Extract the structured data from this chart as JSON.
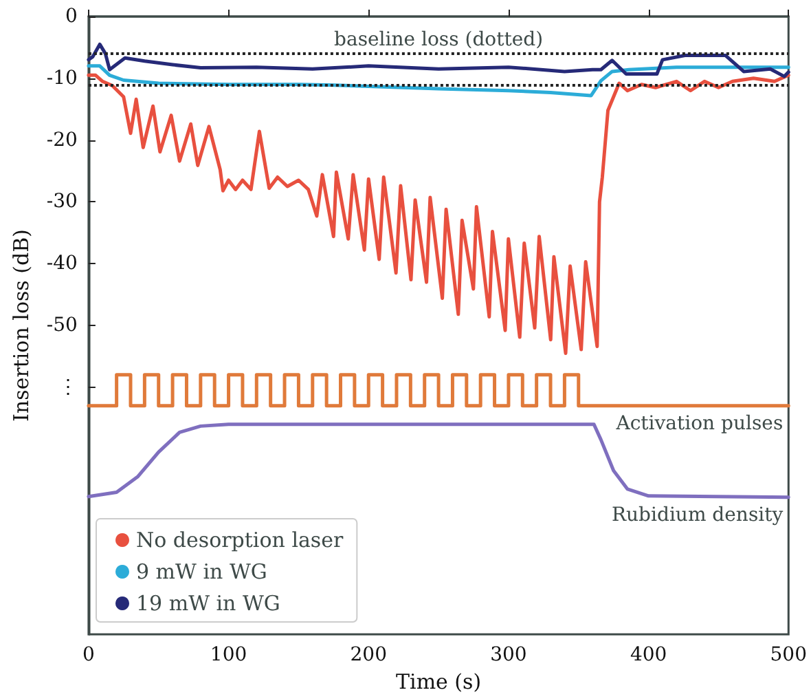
{
  "chart_data": {
    "type": "line",
    "xlabel": "Time (s)",
    "ylabel": "Insertion loss (dB)",
    "xlim": [
      0,
      500
    ],
    "xticks": [
      0,
      100,
      200,
      300,
      400,
      500
    ],
    "ylim": [
      -100,
      0
    ],
    "yticks": [
      0,
      -10,
      -20,
      -30,
      -40,
      {
        "value": -50,
        "label": "-50"
      },
      {
        "value": -60,
        "label": "⋮"
      }
    ],
    "legend": "bottom left",
    "grid": false,
    "ref_lines": [
      {
        "axis": "y",
        "value": -6,
        "label": "baseline loss (dotted)",
        "color": "#222222",
        "line_style": "dotted"
      },
      {
        "axis": "y",
        "value": -11,
        "label": null,
        "color": "#222222",
        "line_style": "dotted"
      }
    ],
    "series": [
      {
        "name": "No desorption laser",
        "color": "#e8503f",
        "x": [
          0,
          5,
          10,
          17,
          25,
          30,
          34,
          39,
          46,
          51,
          59,
          65,
          73,
          78,
          86,
          94,
          96,
          100,
          105,
          110,
          116,
          122,
          129,
          135,
          142,
          150,
          157,
          163,
          167,
          175,
          177,
          185.5,
          189,
          197,
          200,
          207.6,
          210.8,
          219.6,
          222.9,
          230.3,
          233.3,
          241.4,
          244,
          252.7,
          255.4,
          264.1,
          266.8,
          274.9,
          277.1,
          286.2,
          288.5,
          297.6,
          299.9,
          308,
          311.2,
          318.7,
          321.9,
          330.1,
          332.4,
          340.8,
          344,
          351.9,
          355.1,
          363.3,
          365,
          367,
          371,
          379,
          385,
          395,
          405,
          420,
          430,
          440,
          450,
          460,
          475,
          490,
          500
        ],
        "values": [
          -9.5,
          -9.5,
          -10.5,
          -11.2,
          -13,
          -18.9,
          -13.4,
          -21.2,
          -14.5,
          -21.9,
          -16,
          -23.4,
          -17.4,
          -24.1,
          -17.8,
          -24.8,
          -28.2,
          -26.5,
          -28,
          -26.5,
          -28,
          -18.6,
          -27.8,
          -26,
          -27.5,
          -26.5,
          -28,
          -32.3,
          -25.6,
          -35.6,
          -25.2,
          -36,
          -25.6,
          -37.8,
          -26.3,
          -39.3,
          -26,
          -41.5,
          -27.4,
          -42.6,
          -29.7,
          -43,
          -29.3,
          -45.6,
          -31.2,
          -48.2,
          -33,
          -44.1,
          -30.8,
          -48.6,
          -34.8,
          -50.8,
          -36,
          -51.9,
          -36.7,
          -50.4,
          -35.6,
          -52.3,
          -38.9,
          -54.5,
          -40.4,
          -53.9,
          -39.7,
          -53.4,
          -30,
          -26,
          -15.2,
          -10.8,
          -12,
          -11,
          -11.5,
          -10.5,
          -12,
          -10.5,
          -11.5,
          -10.5,
          -10,
          -10.5,
          -9.5
        ]
      },
      {
        "name": "9 mW in WG",
        "color": "#2cacd8",
        "x": [
          0,
          8,
          15,
          25,
          50,
          100,
          150,
          175,
          200,
          250,
          300,
          330,
          359,
          366,
          374,
          386,
          420,
          500
        ],
        "values": [
          -8,
          -8,
          -9.5,
          -10.3,
          -10.8,
          -11,
          -11,
          -11.1,
          -11.3,
          -11.7,
          -12,
          -12.3,
          -12.8,
          -10.4,
          -8.9,
          -8.6,
          -8.2,
          -8.2
        ]
      },
      {
        "name": "19 mW in WG",
        "color": "#262a78",
        "x": [
          0,
          3,
          8,
          12,
          15,
          26,
          40,
          60,
          80,
          120,
          160,
          200,
          250,
          300,
          340,
          360,
          366,
          374,
          384,
          406,
          410,
          426,
          455,
          468,
          487,
          497,
          500
        ],
        "values": [
          -7,
          -6.5,
          -4.5,
          -6,
          -8.6,
          -6.7,
          -7.2,
          -7.8,
          -8.3,
          -8.2,
          -8.5,
          -8,
          -8.5,
          -8.2,
          -8.9,
          -8.6,
          -8.6,
          -7.1,
          -9.3,
          -9.3,
          -7,
          -6.3,
          -6.3,
          -8.9,
          -8.5,
          -9.7,
          -9
        ]
      },
      {
        "name": "Activation pulses",
        "type": "step",
        "color": "#e07a3a",
        "x": [
          0,
          20,
          30,
          40,
          50,
          60,
          70,
          80,
          90,
          100,
          110,
          120,
          130,
          140,
          150,
          160,
          170,
          180,
          190,
          200,
          210,
          220,
          230,
          240,
          250,
          260,
          270,
          280,
          290,
          300,
          310,
          320,
          330,
          340,
          350,
          500
        ],
        "values": [
          -63,
          -58,
          -63,
          -58,
          -63,
          -58,
          -63,
          -58,
          -63,
          -58,
          -63,
          -58,
          -63,
          -58,
          -63,
          -58,
          -63,
          -58,
          -63,
          -58,
          -63,
          -58,
          -63,
          -58,
          -63,
          -58,
          -63,
          -58,
          -63,
          -58,
          -63,
          -58,
          -63,
          -58,
          -63,
          -63
        ]
      },
      {
        "name": "Rubidium density",
        "type": "line",
        "color": "#7f6fbf",
        "x": [
          0,
          20,
          35,
          50,
          65,
          80,
          100,
          361,
          366,
          375,
          385,
          400,
          500
        ],
        "values": [
          -77.7,
          -77,
          -74.5,
          -70.5,
          -67.3,
          -66.3,
          -66,
          -66,
          -68.5,
          -73.5,
          -76.5,
          -77.6,
          -77.8
        ]
      }
    ]
  }
}
